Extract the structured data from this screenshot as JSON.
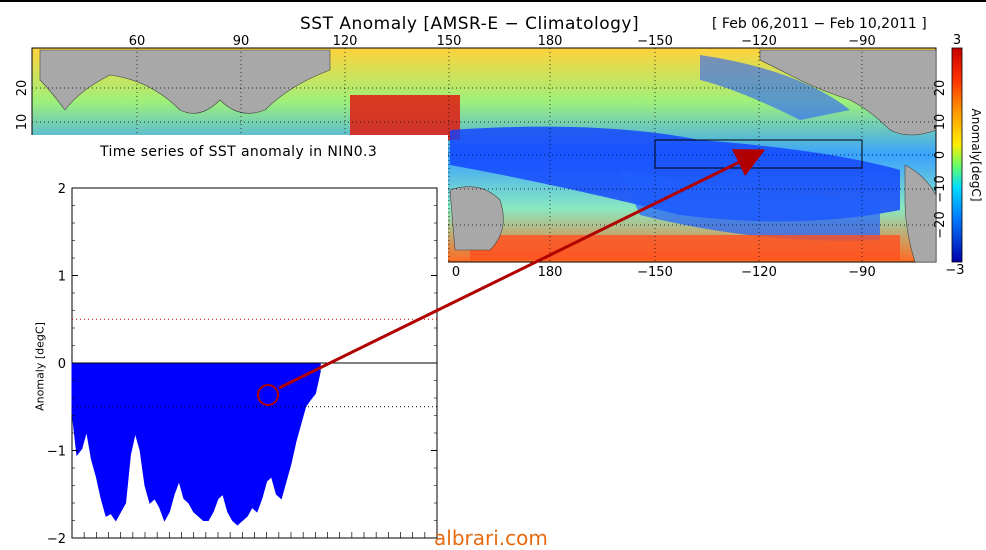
{
  "map": {
    "title": "SST Anomaly [AMSR-E − Climatology]",
    "date_range": "[ Feb 06,2011 − Feb 10,2011 ]",
    "top_lon_ticks": [
      "60",
      "90",
      "120",
      "150",
      "180",
      "−150",
      "−120",
      "−90"
    ],
    "bottom_lon_ticks": [
      "0",
      "180",
      "−150",
      "−120",
      "−90"
    ],
    "left_lat_ticks": [
      "20",
      "10"
    ],
    "right_lat_ticks": [
      "20",
      "10",
      "0",
      "−10",
      "−20"
    ],
    "colorbar": {
      "label": "Anomaly[degC]",
      "max": "3",
      "min": "−3"
    },
    "box_region": "NINO3"
  },
  "chart_data": {
    "type": "area",
    "title": "Time series of SST anomaly in NIN0.3",
    "ylabel": "Anomaly [degC]",
    "xlabel": "",
    "ylim": [
      -2,
      2
    ],
    "yticks": [
      "2",
      "1",
      "0",
      "−1",
      "−2"
    ],
    "reference_lines": [
      0.5,
      0,
      -0.5
    ],
    "x": [
      0,
      1,
      2,
      3,
      4,
      5,
      6,
      7,
      8,
      9,
      10,
      11,
      12,
      13,
      14,
      15,
      16,
      17,
      18,
      19,
      20,
      21,
      22,
      23,
      24,
      25,
      26,
      27,
      28,
      29,
      30,
      31,
      32,
      33,
      34,
      35,
      36,
      37,
      38,
      39,
      40,
      41,
      42,
      43,
      44,
      45,
      46,
      47,
      48,
      49,
      50,
      51
    ],
    "values": [
      -0.55,
      -1.05,
      -0.98,
      -0.78,
      -1.1,
      -1.3,
      -1.55,
      -1.75,
      -1.72,
      -1.8,
      -1.7,
      -1.6,
      -1.05,
      -0.8,
      -1.0,
      -1.4,
      -1.6,
      -1.55,
      -1.65,
      -1.8,
      -1.7,
      -1.5,
      -1.35,
      -1.55,
      -1.6,
      -1.7,
      -1.75,
      -1.8,
      -1.8,
      -1.7,
      -1.55,
      -1.5,
      -1.7,
      -1.8,
      -1.85,
      -1.8,
      -1.75,
      -1.65,
      -1.7,
      -1.55,
      -1.35,
      -1.3,
      -1.5,
      -1.55,
      -1.35,
      -1.15,
      -0.9,
      -0.7,
      -0.5,
      -0.42,
      -0.35,
      -0.1
    ],
    "fill_color": "#0000ff"
  },
  "watermark": "albrari.com"
}
